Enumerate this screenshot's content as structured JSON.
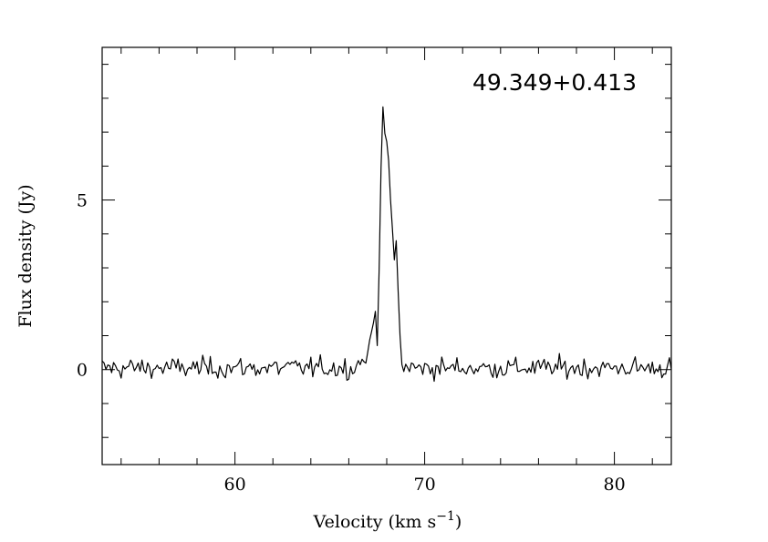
{
  "chart_data": {
    "type": "line",
    "title": "",
    "source_label": "49.349+0.413",
    "xlabel_main": "Velocity (km s",
    "xlabel_sup": "−1",
    "xlabel_close": ")",
    "ylabel": "Flux density (Jy)",
    "xlim": [
      53.0,
      83.0
    ],
    "ylim": [
      -2.8,
      9.5
    ],
    "x_major_ticks": [
      60,
      70,
      80
    ],
    "x_tick_labels": [
      "60",
      "70",
      "80"
    ],
    "x_minor_step": 2,
    "y_major_ticks": [
      0,
      5
    ],
    "y_tick_labels": [
      "0",
      "5"
    ],
    "y_minor_step": 1,
    "grid": false,
    "legend": "none",
    "line_color": "#000000",
    "noise_level": 0.28,
    "channel_width": 0.1,
    "series": [
      {
        "x": [
          53.0,
          66.2,
          66.8,
          67.0,
          67.2,
          67.4,
          67.5,
          67.6,
          67.7,
          67.8,
          67.9,
          68.0,
          68.1,
          68.2,
          68.3,
          68.4,
          68.5,
          68.6,
          68.7,
          68.8,
          68.9,
          69.0,
          69.2,
          69.5,
          83.0
        ],
        "values": [
          0.05,
          0.05,
          0.3,
          0.5,
          1.1,
          1.7,
          0.8,
          3.0,
          6.0,
          7.8,
          6.9,
          6.6,
          6.2,
          5.0,
          4.1,
          3.2,
          3.8,
          2.3,
          1.0,
          0.2,
          -0.1,
          0.15,
          0.05,
          0.05,
          0.05
        ]
      }
    ]
  }
}
